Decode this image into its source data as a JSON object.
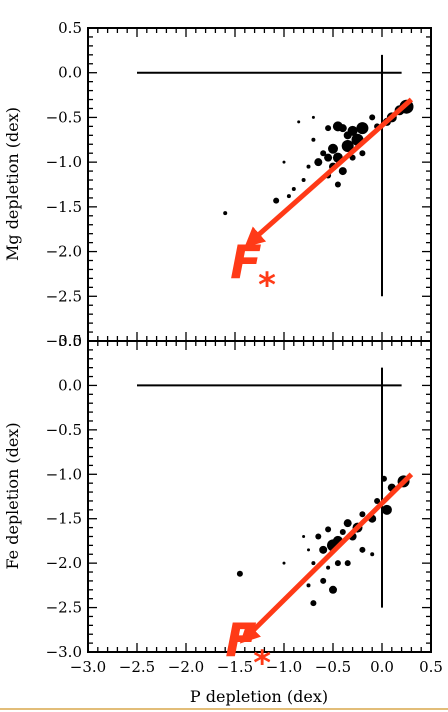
{
  "chart_data": [
    {
      "type": "scatter",
      "title": "",
      "xlabel": "P depletion (dex)",
      "ylabel": "Mg depletion (dex)",
      "xlim": [
        -3.0,
        0.5
      ],
      "ylim": [
        -3.0,
        0.5
      ],
      "x_tick_labels": [],
      "y_ticks": [
        0.5,
        0.0,
        -0.5,
        -1.0,
        -1.5,
        -2.0,
        -2.5,
        -3.0
      ],
      "y_tick_labels": [
        "0.5",
        "0.0",
        "−0.5",
        "−1.0",
        "−1.5",
        "−2.0",
        "−2.5",
        "−3.0"
      ],
      "reference_lines": [
        {
          "orientation": "horizontal",
          "y": 0.0,
          "x_range": [
            -2.5,
            0.2
          ]
        },
        {
          "orientation": "vertical",
          "x": 0.0,
          "y_range": [
            -2.5,
            0.2
          ]
        }
      ],
      "fit_arrow": {
        "from": [
          0.3,
          -0.3
        ],
        "to": [
          -1.35,
          -1.9
        ],
        "color": "#ff3a17"
      },
      "annotation": {
        "text": "F",
        "subscript": "*",
        "x": -1.55,
        "y": -2.3
      },
      "points": [
        {
          "x": 0.25,
          "y": -0.38,
          "s": 7
        },
        {
          "x": 0.18,
          "y": -0.42,
          "s": 5
        },
        {
          "x": 0.1,
          "y": -0.5,
          "s": 5
        },
        {
          "x": 0.05,
          "y": -0.55,
          "s": 4
        },
        {
          "x": -0.05,
          "y": -0.6,
          "s": 3
        },
        {
          "x": -0.1,
          "y": -0.5,
          "s": 3
        },
        {
          "x": -0.2,
          "y": -0.62,
          "s": 6
        },
        {
          "x": -0.3,
          "y": -0.65,
          "s": 5
        },
        {
          "x": -0.35,
          "y": -0.7,
          "s": 4
        },
        {
          "x": -0.4,
          "y": -0.62,
          "s": 4
        },
        {
          "x": -0.45,
          "y": -0.6,
          "s": 5
        },
        {
          "x": -0.55,
          "y": -0.62,
          "s": 3
        },
        {
          "x": -0.25,
          "y": -0.75,
          "s": 6
        },
        {
          "x": -0.35,
          "y": -0.82,
          "s": 6
        },
        {
          "x": -0.5,
          "y": -0.85,
          "s": 5
        },
        {
          "x": -0.45,
          "y": -0.95,
          "s": 5
        },
        {
          "x": -0.55,
          "y": -0.95,
          "s": 4
        },
        {
          "x": -0.6,
          "y": -0.9,
          "s": 3
        },
        {
          "x": -0.65,
          "y": -1.0,
          "s": 4
        },
        {
          "x": -0.5,
          "y": -1.05,
          "s": 4
        },
        {
          "x": -0.4,
          "y": -1.1,
          "s": 4
        },
        {
          "x": -0.55,
          "y": -1.15,
          "s": 3
        },
        {
          "x": -0.45,
          "y": -1.25,
          "s": 3
        },
        {
          "x": -0.3,
          "y": -0.95,
          "s": 3
        },
        {
          "x": -0.2,
          "y": -0.9,
          "s": 3
        },
        {
          "x": -0.7,
          "y": -0.75,
          "s": 2
        },
        {
          "x": -0.75,
          "y": -1.05,
          "s": 2
        },
        {
          "x": -0.8,
          "y": -1.2,
          "s": 2
        },
        {
          "x": -0.9,
          "y": -1.3,
          "s": 2
        },
        {
          "x": -1.0,
          "y": -1.0,
          "s": 1.5
        },
        {
          "x": -0.85,
          "y": -0.55,
          "s": 1.5
        },
        {
          "x": -0.7,
          "y": -0.5,
          "s": 1.5
        },
        {
          "x": -0.95,
          "y": -1.38,
          "s": 2
        },
        {
          "x": -1.08,
          "y": -1.43,
          "s": 3
        },
        {
          "x": -1.6,
          "y": -1.57,
          "s": 2
        }
      ]
    },
    {
      "type": "scatter",
      "title": "",
      "xlabel": "P depletion (dex)",
      "ylabel": "Fe depletion (dex)",
      "xlim": [
        -3.0,
        0.5
      ],
      "ylim": [
        -3.0,
        0.5
      ],
      "x_ticks": [
        -3.0,
        -2.5,
        -2.0,
        -1.5,
        -1.0,
        -0.5,
        0.0,
        0.5
      ],
      "x_tick_labels": [
        "−3.0",
        "−2.5",
        "−2.0",
        "−1.5",
        "−1.0",
        "−0.5",
        "0.0",
        "0.5"
      ],
      "y_ticks": [
        0.5,
        0.0,
        -0.5,
        -1.0,
        -1.5,
        -2.0,
        -2.5,
        -3.0
      ],
      "y_tick_labels": [
        "0.5",
        "0.0",
        "−0.5",
        "−1.0",
        "−1.5",
        "−2.0",
        "−2.5",
        "−3.0"
      ],
      "reference_lines": [
        {
          "orientation": "horizontal",
          "y": 0.0,
          "x_range": [
            -2.5,
            0.2
          ]
        },
        {
          "orientation": "vertical",
          "x": 0.0,
          "y_range": [
            -2.5,
            0.2
          ]
        }
      ],
      "fit_arrow": {
        "from": [
          0.3,
          -1.0
        ],
        "to": [
          -1.4,
          -2.85
        ],
        "color": "#ff3a17"
      },
      "annotation": {
        "text": "F",
        "subscript": "*",
        "x": -1.6,
        "y": -3.05
      },
      "points": [
        {
          "x": 0.22,
          "y": -1.08,
          "s": 6
        },
        {
          "x": 0.1,
          "y": -1.15,
          "s": 4
        },
        {
          "x": 0.02,
          "y": -1.05,
          "s": 3
        },
        {
          "x": -0.05,
          "y": -1.3,
          "s": 3
        },
        {
          "x": 0.05,
          "y": -1.4,
          "s": 5
        },
        {
          "x": -0.1,
          "y": -1.5,
          "s": 4
        },
        {
          "x": -0.2,
          "y": -1.45,
          "s": 3
        },
        {
          "x": -0.25,
          "y": -1.6,
          "s": 5
        },
        {
          "x": -0.35,
          "y": -1.55,
          "s": 4
        },
        {
          "x": -0.3,
          "y": -1.7,
          "s": 4
        },
        {
          "x": -0.4,
          "y": -1.65,
          "s": 3
        },
        {
          "x": -0.45,
          "y": -1.75,
          "s": 5
        },
        {
          "x": -0.5,
          "y": -1.8,
          "s": 6
        },
        {
          "x": -0.6,
          "y": -1.85,
          "s": 4
        },
        {
          "x": -0.55,
          "y": -1.62,
          "s": 3
        },
        {
          "x": -0.65,
          "y": -1.7,
          "s": 3
        },
        {
          "x": -0.2,
          "y": -1.85,
          "s": 3
        },
        {
          "x": -0.1,
          "y": -1.9,
          "s": 2
        },
        {
          "x": -0.35,
          "y": -2.0,
          "s": 3
        },
        {
          "x": -0.45,
          "y": -2.0,
          "s": 3
        },
        {
          "x": -0.55,
          "y": -2.05,
          "s": 2
        },
        {
          "x": -0.7,
          "y": -2.0,
          "s": 2
        },
        {
          "x": -0.75,
          "y": -1.85,
          "s": 1.5
        },
        {
          "x": -0.8,
          "y": -1.7,
          "s": 1.5
        },
        {
          "x": -0.6,
          "y": -2.2,
          "s": 3
        },
        {
          "x": -0.5,
          "y": -2.3,
          "s": 4
        },
        {
          "x": -0.75,
          "y": -2.25,
          "s": 2
        },
        {
          "x": -1.0,
          "y": -2.0,
          "s": 1.5
        },
        {
          "x": -0.7,
          "y": -2.45,
          "s": 3
        },
        {
          "x": -1.45,
          "y": -2.12,
          "s": 3
        }
      ]
    }
  ]
}
